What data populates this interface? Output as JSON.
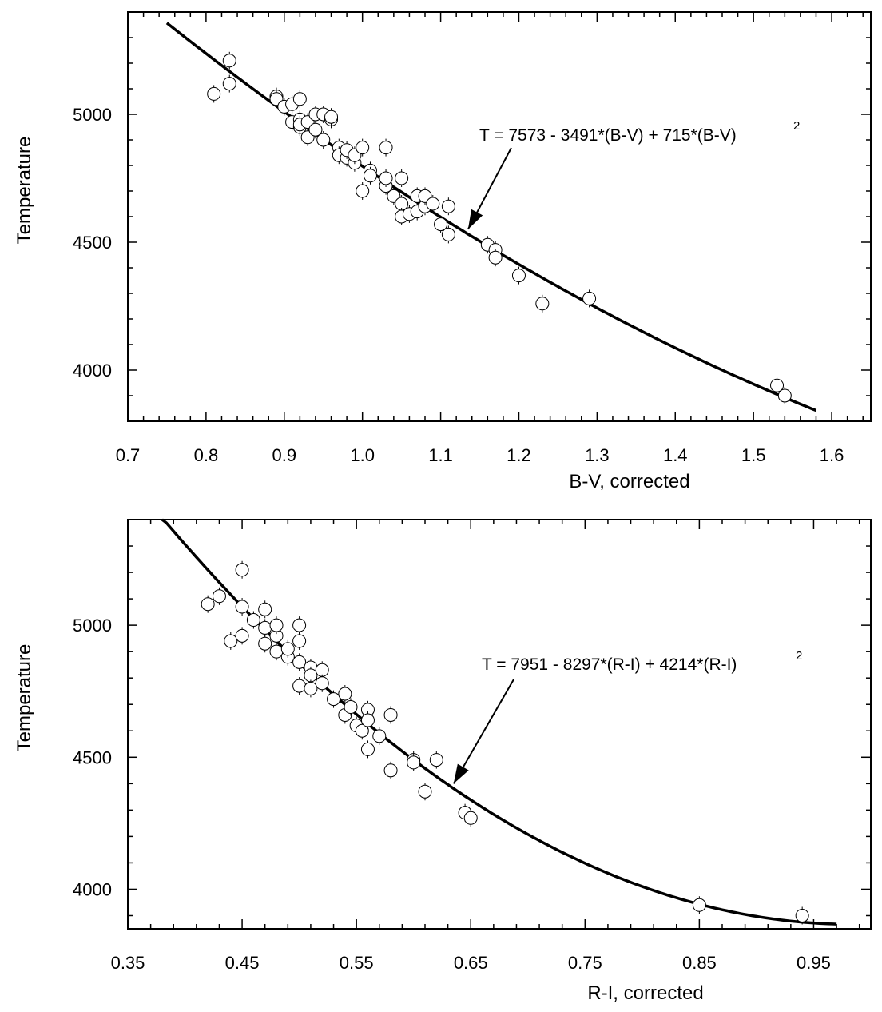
{
  "chart_data": [
    {
      "type": "scatter",
      "title": "",
      "xlabel": "B-V, corrected",
      "ylabel": "Temperature",
      "xlim": [
        0.7,
        1.65
      ],
      "ylim": [
        3800,
        5400
      ],
      "x_ticks": [
        "0.7",
        "0.8",
        "0.9",
        "1.0",
        "1.1",
        "1.2",
        "1.3",
        "1.4",
        "1.5",
        "1.6"
      ],
      "y_ticks": [
        "4000",
        "4500",
        "5000"
      ],
      "grid": false,
      "fit": {
        "a": 7573,
        "b": -3491,
        "c": 715,
        "x_range": [
          0.75,
          1.58
        ]
      },
      "annotation": {
        "text": "T = 7573 - 3491*(B-V) + 715*(B-V)",
        "sup": "2",
        "arrow_to_x": 1.135
      },
      "series": [
        {
          "x": [
            0.81,
            0.83,
            0.83,
            0.89,
            0.89,
            0.9,
            0.91,
            0.91,
            0.92,
            0.92,
            0.92,
            0.92,
            0.93,
            0.93,
            0.94,
            0.94,
            0.95,
            0.95,
            0.96,
            0.96,
            0.97,
            0.97,
            0.98,
            0.98,
            0.99,
            0.99,
            1.0,
            1.0,
            1.01,
            1.01,
            1.03,
            1.03,
            1.03,
            1.04,
            1.05,
            1.05,
            1.05,
            1.06,
            1.07,
            1.07,
            1.08,
            1.08,
            1.09,
            1.1,
            1.11,
            1.11,
            1.16,
            1.17,
            1.17,
            1.2,
            1.23,
            1.29,
            1.53,
            1.54
          ],
          "y": [
            5080,
            5210,
            5120,
            5070,
            5060,
            5030,
            5040,
            4970,
            5060,
            4950,
            4980,
            4960,
            4970,
            4910,
            4940,
            5000,
            4900,
            5000,
            4980,
            4990,
            4870,
            4840,
            4830,
            4860,
            4810,
            4840,
            4870,
            4700,
            4780,
            4760,
            4870,
            4720,
            4750,
            4680,
            4750,
            4650,
            4600,
            4610,
            4680,
            4620,
            4640,
            4680,
            4650,
            4570,
            4530,
            4640,
            4490,
            4470,
            4440,
            4370,
            4260,
            4280,
            3940,
            3900
          ]
        }
      ]
    },
    {
      "type": "scatter",
      "title": "",
      "xlabel": "R-I, corrected",
      "ylabel": "Temperature",
      "xlim": [
        0.35,
        1.0
      ],
      "ylim": [
        3850,
        5400
      ],
      "x_ticks": [
        "0.35",
        "0.45",
        "0.55",
        "0.65",
        "0.75",
        "0.85",
        "0.95"
      ],
      "y_ticks": [
        "4000",
        "4500",
        "5000"
      ],
      "grid": false,
      "fit": {
        "a": 7951,
        "b": -8297,
        "c": 4214,
        "x_range": [
          0.38,
          0.97
        ]
      },
      "annotation": {
        "text": "T = 7951 - 8297*(R-I) + 4214*(R-I)",
        "sup": "2",
        "arrow_to_x": 0.635
      },
      "series": [
        {
          "x": [
            0.42,
            0.43,
            0.44,
            0.45,
            0.45,
            0.45,
            0.46,
            0.47,
            0.47,
            0.47,
            0.48,
            0.48,
            0.48,
            0.49,
            0.49,
            0.5,
            0.5,
            0.5,
            0.5,
            0.51,
            0.51,
            0.51,
            0.52,
            0.52,
            0.53,
            0.54,
            0.54,
            0.545,
            0.55,
            0.555,
            0.56,
            0.56,
            0.56,
            0.57,
            0.58,
            0.58,
            0.6,
            0.6,
            0.61,
            0.62,
            0.645,
            0.65,
            0.85,
            0.94
          ],
          "y": [
            5080,
            5110,
            4940,
            5210,
            5070,
            4960,
            5020,
            5060,
            4990,
            4930,
            4960,
            5000,
            4900,
            4880,
            4910,
            5000,
            4940,
            4860,
            4770,
            4840,
            4810,
            4760,
            4830,
            4780,
            4720,
            4740,
            4660,
            4690,
            4620,
            4600,
            4680,
            4640,
            4530,
            4580,
            4660,
            4450,
            4490,
            4480,
            4370,
            4490,
            4290,
            4270,
            3940,
            3900
          ]
        }
      ]
    }
  ]
}
